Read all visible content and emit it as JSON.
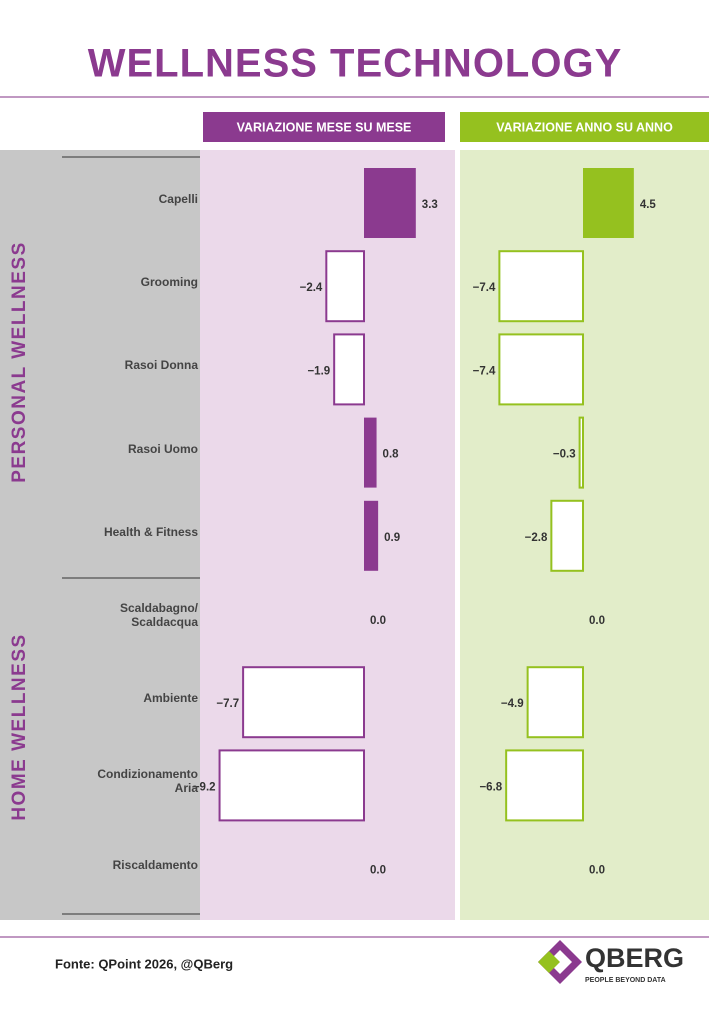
{
  "chart_data": {
    "type": "bar",
    "title": "WELLNESS TECHNOLOGY",
    "groups": [
      "PERSONAL WELLNESS",
      "HOME WELLNESS"
    ],
    "categories": [
      "Capelli",
      "Grooming",
      "Rasoi Donna",
      "Rasoi Uomo",
      "Health & Fitness",
      "Scaldabagno/ Scaldacqua",
      "Ambiente",
      "Condizionamento Aria",
      "Riscaldamento"
    ],
    "series": [
      {
        "name": "VARIAZIONE MESE SU MESE",
        "color": "#8b3a8f",
        "background": "#ebd9ea",
        "values": [
          3.3,
          -2.4,
          -1.9,
          0.8,
          0.9,
          0.0,
          -7.7,
          -9.2,
          0.0
        ],
        "value_labels": [
          "3.3",
          "−2.4",
          "−1.9",
          "0.8",
          "0.9",
          "0.0",
          "−7.7",
          "−9.2",
          "0.0"
        ]
      },
      {
        "name": "VARIAZIONE ANNO SU ANNO",
        "color": "#95c11f",
        "background": "#e2edc9",
        "values": [
          4.5,
          -7.4,
          -7.4,
          -0.3,
          -2.8,
          0.0,
          -4.9,
          -6.8,
          0.0
        ],
        "value_labels": [
          "4.5",
          "−7.4",
          "−7.4",
          "−0.3",
          "−2.8",
          "0.0",
          "−4.9",
          "−6.8",
          "0.0"
        ]
      }
    ]
  },
  "source": "Fonte: QPoint 2026, @QBerg",
  "logo": {
    "name": "QBERG",
    "tagline": "PEOPLE BEYOND DATA"
  }
}
